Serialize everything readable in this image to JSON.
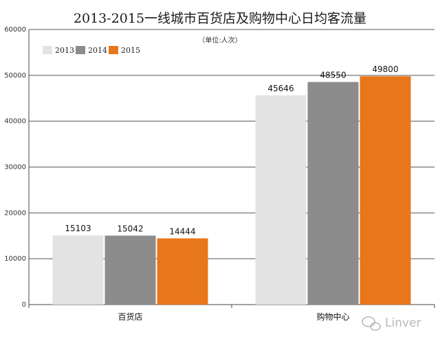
{
  "chart_data": {
    "type": "bar",
    "title": "2013-2015一线城市百货店及购物中心日均客流量",
    "unit_note": "（单位:人次）",
    "categories": [
      "百货店",
      "购物中心"
    ],
    "series": [
      {
        "name": "2013",
        "color": "#e3e3e3",
        "values": [
          15103,
          45646
        ]
      },
      {
        "name": "2014",
        "color": "#8c8c8c",
        "values": [
          15042,
          48550
        ]
      },
      {
        "name": "2015",
        "color": "#e8761a",
        "values": [
          14444,
          49800
        ]
      }
    ],
    "ylim": [
      0,
      60000
    ],
    "yticks": [
      0,
      10000,
      20000,
      30000,
      40000,
      50000,
      60000
    ],
    "grid": true,
    "legend_position": "top-left"
  },
  "watermark": {
    "text": "Linver",
    "icon": "wechat-bubble-icon"
  }
}
